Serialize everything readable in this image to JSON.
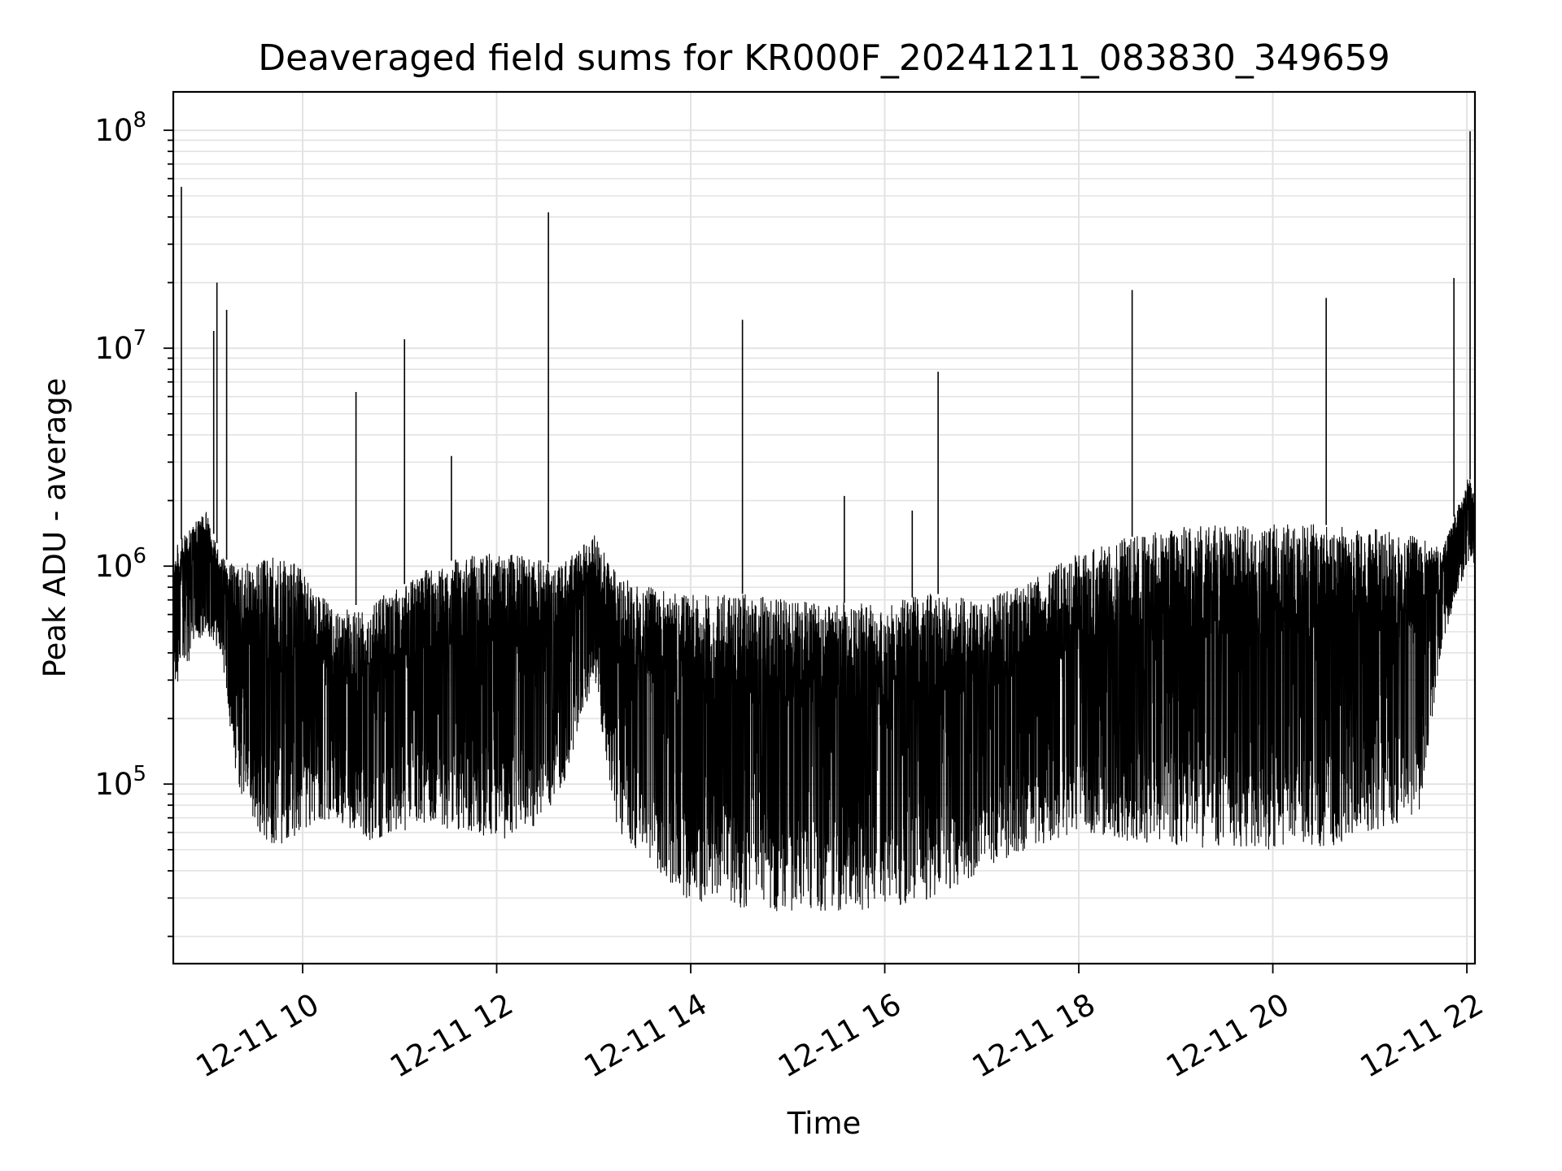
{
  "chart_data": {
    "type": "line",
    "title": "Deaveraged field sums for KR000F_20241211_083830_349659",
    "xlabel": "Time",
    "ylabel": "Peak ADU - average",
    "yscale": "log",
    "grid": true,
    "line_color": "#000000",
    "x_ticks": [
      "12-11 10",
      "12-11 12",
      "12-11 14",
      "12-11 16",
      "12-11 18",
      "12-11 20",
      "12-11 22"
    ],
    "y_ticks": [
      {
        "base": "10",
        "exp": "5"
      },
      {
        "base": "10",
        "exp": "6"
      },
      {
        "base": "10",
        "exp": "7"
      },
      {
        "base": "10",
        "exp": "8"
      }
    ],
    "xlim": [
      "2024-12-11 08:40",
      "2024-12-11 22:05"
    ],
    "ylim": [
      15000,
      150000000
    ],
    "series": [
      {
        "envelope": [
          {
            "t": "2024-12-11 08:40",
            "lo": 270000,
            "hi": 1200000
          },
          {
            "t": "2024-12-11 09:00",
            "lo": 500000,
            "hi": 1800000
          },
          {
            "t": "2024-12-11 09:10",
            "lo": 400000,
            "hi": 1100000
          },
          {
            "t": "2024-12-11 09:20",
            "lo": 90000,
            "hi": 1000000
          },
          {
            "t": "2024-12-11 09:40",
            "lo": 50000,
            "hi": 1100000
          },
          {
            "t": "2024-12-11 10:00",
            "lo": 60000,
            "hi": 1000000
          },
          {
            "t": "2024-12-11 10:20",
            "lo": 70000,
            "hi": 600000
          },
          {
            "t": "2024-12-11 10:40",
            "lo": 55000,
            "hi": 700000
          },
          {
            "t": "2024-12-11 11:00",
            "lo": 60000,
            "hi": 800000
          },
          {
            "t": "2024-12-11 11:20",
            "lo": 65000,
            "hi": 1000000
          },
          {
            "t": "2024-12-11 11:40",
            "lo": 60000,
            "hi": 1100000
          },
          {
            "t": "2024-12-11 12:00",
            "lo": 55000,
            "hi": 1150000
          },
          {
            "t": "2024-12-11 12:20",
            "lo": 60000,
            "hi": 1100000
          },
          {
            "t": "2024-12-11 12:40",
            "lo": 90000,
            "hi": 1000000
          },
          {
            "t": "2024-12-11 13:00",
            "lo": 300000,
            "hi": 1400000
          },
          {
            "t": "2024-12-11 13:15",
            "lo": 60000,
            "hi": 900000
          },
          {
            "t": "2024-12-11 13:40",
            "lo": 40000,
            "hi": 800000
          },
          {
            "t": "2024-12-11 14:00",
            "lo": 28000,
            "hi": 750000
          },
          {
            "t": "2024-12-11 14:30",
            "lo": 27000,
            "hi": 750000
          },
          {
            "t": "2024-12-11 15:00",
            "lo": 26000,
            "hi": 700000
          },
          {
            "t": "2024-12-11 15:30",
            "lo": 26000,
            "hi": 680000
          },
          {
            "t": "2024-12-11 16:00",
            "lo": 27000,
            "hi": 680000
          },
          {
            "t": "2024-12-11 16:30",
            "lo": 30000,
            "hi": 750000
          },
          {
            "t": "2024-12-11 17:00",
            "lo": 40000,
            "hi": 700000
          },
          {
            "t": "2024-12-11 17:30",
            "lo": 50000,
            "hi": 850000
          },
          {
            "t": "2024-12-11 18:00",
            "lo": 60000,
            "hi": 1150000
          },
          {
            "t": "2024-12-11 18:30",
            "lo": 55000,
            "hi": 1350000
          },
          {
            "t": "2024-12-11 19:00",
            "lo": 50000,
            "hi": 1500000
          },
          {
            "t": "2024-12-11 19:30",
            "lo": 50000,
            "hi": 1550000
          },
          {
            "t": "2024-12-11 20:00",
            "lo": 50000,
            "hi": 1550000
          },
          {
            "t": "2024-12-11 20:30",
            "lo": 50000,
            "hi": 1550000
          },
          {
            "t": "2024-12-11 21:00",
            "lo": 60000,
            "hi": 1500000
          },
          {
            "t": "2024-12-11 21:30",
            "lo": 70000,
            "hi": 1400000
          },
          {
            "t": "2024-12-11 21:45",
            "lo": 450000,
            "hi": 1200000
          },
          {
            "t": "2024-12-11 22:00",
            "lo": 1000000,
            "hi": 2500000
          }
        ],
        "spikes": [
          {
            "t": "2024-12-11 08:45",
            "value": 55000000
          },
          {
            "t": "2024-12-11 09:05",
            "value": 12000000
          },
          {
            "t": "2024-12-11 09:07",
            "value": 20000000
          },
          {
            "t": "2024-12-11 09:13",
            "value": 15000000
          },
          {
            "t": "2024-12-11 10:33",
            "value": 6300000
          },
          {
            "t": "2024-12-11 11:03",
            "value": 11000000
          },
          {
            "t": "2024-12-11 11:32",
            "value": 3200000
          },
          {
            "t": "2024-12-11 12:32",
            "value": 42000000
          },
          {
            "t": "2024-12-11 14:32",
            "value": 13500000
          },
          {
            "t": "2024-12-11 15:35",
            "value": 2100000
          },
          {
            "t": "2024-12-11 16:17",
            "value": 1800000
          },
          {
            "t": "2024-12-11 16:33",
            "value": 7800000
          },
          {
            "t": "2024-12-11 18:33",
            "value": 18500000
          },
          {
            "t": "2024-12-11 20:33",
            "value": 17000000
          },
          {
            "t": "2024-12-11 21:52",
            "value": 21000000
          },
          {
            "t": "2024-12-11 22:02",
            "value": 99000000
          }
        ]
      }
    ]
  }
}
